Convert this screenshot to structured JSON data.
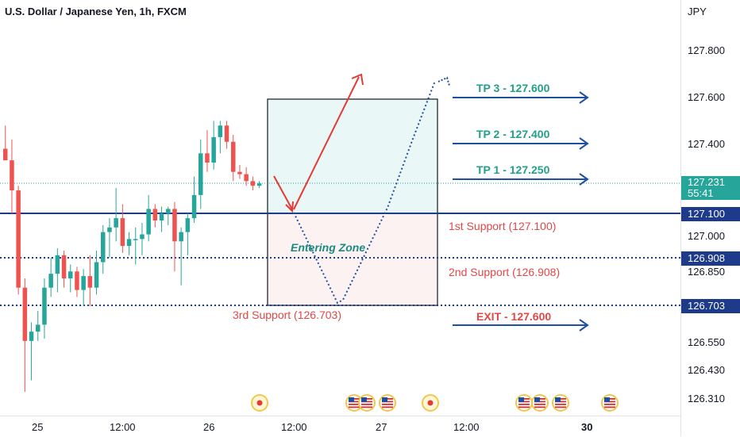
{
  "header": {
    "title": "U.S. Dollar / Japanese Yen, 1h, FXCM"
  },
  "axis": {
    "currency": "JPY",
    "price_ticks": [
      "127.800",
      "127.600",
      "127.400",
      "127.000",
      "126.850",
      "126.550",
      "126.430",
      "126.310"
    ],
    "time_ticks": [
      "25",
      "12:00",
      "26",
      "12:00",
      "27",
      "12:00",
      "30"
    ]
  },
  "price_tags": {
    "current_price": "127.231",
    "countdown": "55:41",
    "support_1": "127.100",
    "support_2": "126.908",
    "support_3": "126.703"
  },
  "annotations": {
    "tp3": "TP 3 - 127.600",
    "tp2": "TP 2 - 127.400",
    "tp1": "TP 1 - 127.250",
    "support_1": "1st Support (127.100)",
    "support_2": "2nd Support (126.908)",
    "support_3": "3rd Support (126.703)",
    "exit": "EXIT - 127.600",
    "entering_zone": "Entering Zone"
  },
  "colors": {
    "up": "#26a69a",
    "down": "#ef5350",
    "support_line": "#1e3a8a",
    "arrow_blue": "#1f4fa3",
    "tp_text": "#22a08a",
    "support_text": "#e04848",
    "zone_top": "#e9f7f6",
    "zone_bottom": "#fdf2f2",
    "current_price": "#26a69a"
  },
  "events": {
    "dot_icon": "record-dot-icon",
    "flag_icon": "us-flag-icon"
  },
  "chart_data": {
    "type": "candlestick",
    "title": "U.S. Dollar / Japanese Yen, 1h, FXCM",
    "ylabel": "JPY",
    "ylim": [
      126.22,
      127.92
    ],
    "x_tick_labels": [
      "25",
      "12:00",
      "26",
      "12:00",
      "27",
      "12:00",
      "30"
    ],
    "candles": [
      {
        "o": 127.38,
        "h": 127.48,
        "l": 127.33,
        "c": 127.33
      },
      {
        "o": 127.33,
        "h": 127.42,
        "l": 127.1,
        "c": 127.2
      },
      {
        "o": 127.2,
        "h": 127.22,
        "l": 126.75,
        "c": 126.78
      },
      {
        "o": 126.78,
        "h": 126.82,
        "l": 126.33,
        "c": 126.55
      },
      {
        "o": 126.55,
        "h": 126.63,
        "l": 126.38,
        "c": 126.59
      },
      {
        "o": 126.59,
        "h": 126.68,
        "l": 126.55,
        "c": 126.62
      },
      {
        "o": 126.62,
        "h": 126.82,
        "l": 126.56,
        "c": 126.78
      },
      {
        "o": 126.78,
        "h": 126.91,
        "l": 126.74,
        "c": 126.84
      },
      {
        "o": 126.84,
        "h": 126.95,
        "l": 126.76,
        "c": 126.92
      },
      {
        "o": 126.92,
        "h": 126.94,
        "l": 126.78,
        "c": 126.82
      },
      {
        "o": 126.82,
        "h": 126.88,
        "l": 126.76,
        "c": 126.85
      },
      {
        "o": 126.85,
        "h": 126.87,
        "l": 126.74,
        "c": 126.77
      },
      {
        "o": 126.77,
        "h": 126.86,
        "l": 126.7,
        "c": 126.83
      },
      {
        "o": 126.83,
        "h": 126.92,
        "l": 126.7,
        "c": 126.78
      },
      {
        "o": 126.78,
        "h": 126.94,
        "l": 126.75,
        "c": 126.89
      },
      {
        "o": 126.89,
        "h": 127.05,
        "l": 126.84,
        "c": 127.02
      },
      {
        "o": 127.02,
        "h": 127.08,
        "l": 126.91,
        "c": 127.04
      },
      {
        "o": 127.04,
        "h": 127.21,
        "l": 126.98,
        "c": 127.08
      },
      {
        "o": 127.08,
        "h": 127.14,
        "l": 126.93,
        "c": 126.96
      },
      {
        "o": 126.96,
        "h": 127.02,
        "l": 126.92,
        "c": 126.99
      },
      {
        "o": 126.99,
        "h": 127.04,
        "l": 126.88,
        "c": 126.99
      },
      {
        "o": 126.99,
        "h": 127.06,
        "l": 126.92,
        "c": 127.01
      },
      {
        "o": 127.01,
        "h": 127.18,
        "l": 126.98,
        "c": 127.12
      },
      {
        "o": 127.12,
        "h": 127.14,
        "l": 127.04,
        "c": 127.07
      },
      {
        "o": 127.07,
        "h": 127.13,
        "l": 127.02,
        "c": 127.1
      },
      {
        "o": 127.1,
        "h": 127.13,
        "l": 127.05,
        "c": 127.12
      },
      {
        "o": 127.12,
        "h": 127.15,
        "l": 126.85,
        "c": 126.98
      },
      {
        "o": 126.98,
        "h": 127.04,
        "l": 126.79,
        "c": 127.02
      },
      {
        "o": 127.02,
        "h": 127.1,
        "l": 126.92,
        "c": 127.08
      },
      {
        "o": 127.08,
        "h": 127.26,
        "l": 127.06,
        "c": 127.18
      },
      {
        "o": 127.18,
        "h": 127.42,
        "l": 127.12,
        "c": 127.36
      },
      {
        "o": 127.36,
        "h": 127.46,
        "l": 127.28,
        "c": 127.32
      },
      {
        "o": 127.32,
        "h": 127.5,
        "l": 127.29,
        "c": 127.43
      },
      {
        "o": 127.43,
        "h": 127.5,
        "l": 127.36,
        "c": 127.48
      },
      {
        "o": 127.48,
        "h": 127.5,
        "l": 127.38,
        "c": 127.41
      },
      {
        "o": 127.41,
        "h": 127.44,
        "l": 127.24,
        "c": 127.28
      },
      {
        "o": 127.28,
        "h": 127.31,
        "l": 127.25,
        "c": 127.27
      },
      {
        "o": 127.27,
        "h": 127.3,
        "l": 127.22,
        "c": 127.24
      },
      {
        "o": 127.24,
        "h": 127.26,
        "l": 127.2,
        "c": 127.22
      },
      {
        "o": 127.22,
        "h": 127.24,
        "l": 127.21,
        "c": 127.23
      }
    ],
    "levels": [
      {
        "label": "current",
        "value": 127.231
      },
      {
        "label": "1st Support",
        "value": 127.1
      },
      {
        "label": "2nd Support",
        "value": 126.908
      },
      {
        "label": "3rd Support",
        "value": 126.703
      }
    ],
    "targets": [
      {
        "label": "TP 1",
        "value": 127.25
      },
      {
        "label": "TP 2",
        "value": 127.4
      },
      {
        "label": "TP 3",
        "value": 127.6
      },
      {
        "label": "EXIT",
        "value": 127.6
      }
    ],
    "zone": {
      "top": 127.6,
      "mid": 127.1,
      "bottom": 126.703
    },
    "grid": false
  }
}
